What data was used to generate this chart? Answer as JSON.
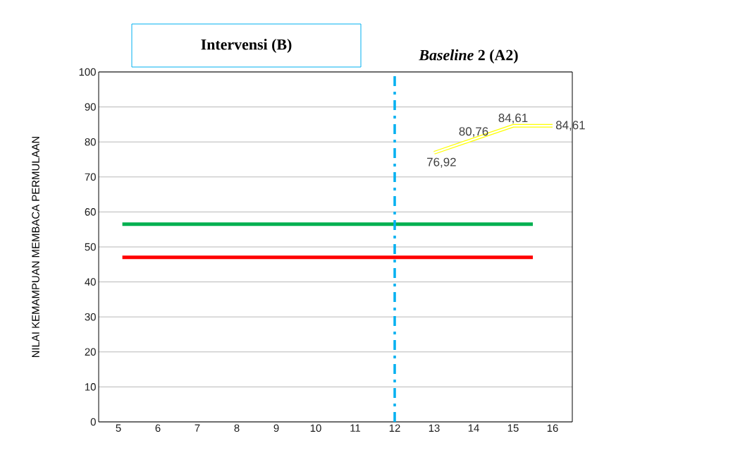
{
  "chart_data": {
    "type": "line",
    "annotations": [
      "Intervensi (B)",
      "*Baseline* 2 (A2)"
    ],
    "ylabel": "NILAI KEMAMPUAN MEMBACA PERMULAAN",
    "xlim": [
      4.5,
      16.5
    ],
    "xticks": [
      5,
      6,
      7,
      8,
      9,
      10,
      11,
      12,
      13,
      14,
      15,
      16
    ],
    "ylim": [
      0,
      100
    ],
    "yticks": [
      0,
      10,
      20,
      30,
      40,
      50,
      60,
      70,
      80,
      90,
      100
    ],
    "grid": "y",
    "series": [
      {
        "color": "#ffff00",
        "x": [
          13,
          14,
          15,
          16
        ],
        "values": [
          76.92,
          80.76,
          84.61,
          84.61
        ],
        "value_labels": [
          "76,92",
          "80,76",
          "84,61",
          "84,61"
        ]
      }
    ],
    "ref_lines": [
      {
        "axis": "y",
        "value": 56.5,
        "color": "#00b050",
        "line_style": "solid"
      },
      {
        "axis": "y",
        "value": 47,
        "color": "#ff0000",
        "line_style": "solid"
      },
      {
        "axis": "x",
        "value": 12,
        "color": "#00b0f0",
        "line_style": "dashdot"
      }
    ]
  }
}
